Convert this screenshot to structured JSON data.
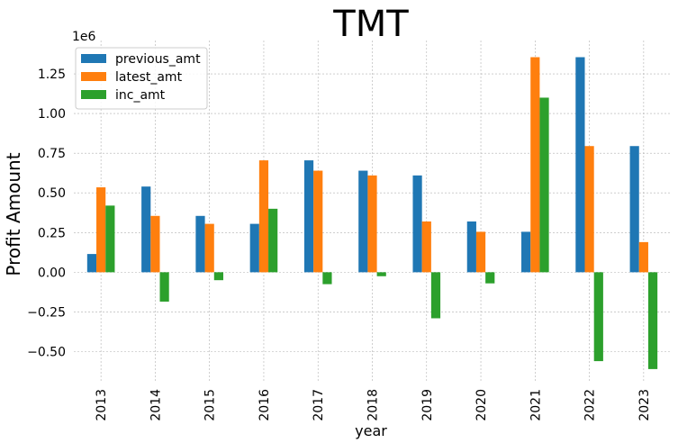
{
  "chart_data": {
    "type": "bar",
    "title": "TMT",
    "xlabel": "year",
    "ylabel": "Profit Amount",
    "offset_text": "1e6",
    "categories": [
      "2013",
      "2014",
      "2015",
      "2016",
      "2017",
      "2018",
      "2019",
      "2020",
      "2021",
      "2022",
      "2023"
    ],
    "series": [
      {
        "name": "previous_amt",
        "color": "#1f77b4",
        "values": [
          115000,
          540000,
          355000,
          305000,
          705000,
          640000,
          610000,
          320000,
          255000,
          1355000,
          795000
        ]
      },
      {
        "name": "latest_amt",
        "color": "#ff7f0e",
        "values": [
          535000,
          355000,
          305000,
          705000,
          640000,
          610000,
          320000,
          255000,
          1355000,
          795000,
          190000
        ]
      },
      {
        "name": "inc_amt",
        "color": "#2ca02c",
        "values": [
          420000,
          -185000,
          -50000,
          400000,
          -75000,
          -25000,
          -290000,
          -70000,
          1100000,
          -560000,
          -610000
        ]
      }
    ],
    "yticks": [
      -0.5,
      -0.25,
      0.0,
      0.25,
      0.5,
      0.75,
      1.0,
      1.25
    ],
    "ytick_labels": [
      "−0.50",
      "−0.25",
      "0.00",
      "0.25",
      "0.50",
      "0.75",
      "1.00",
      "1.25"
    ],
    "ylim": [
      -0.69,
      1.46
    ],
    "grid": true,
    "legend_position": "top-left"
  }
}
